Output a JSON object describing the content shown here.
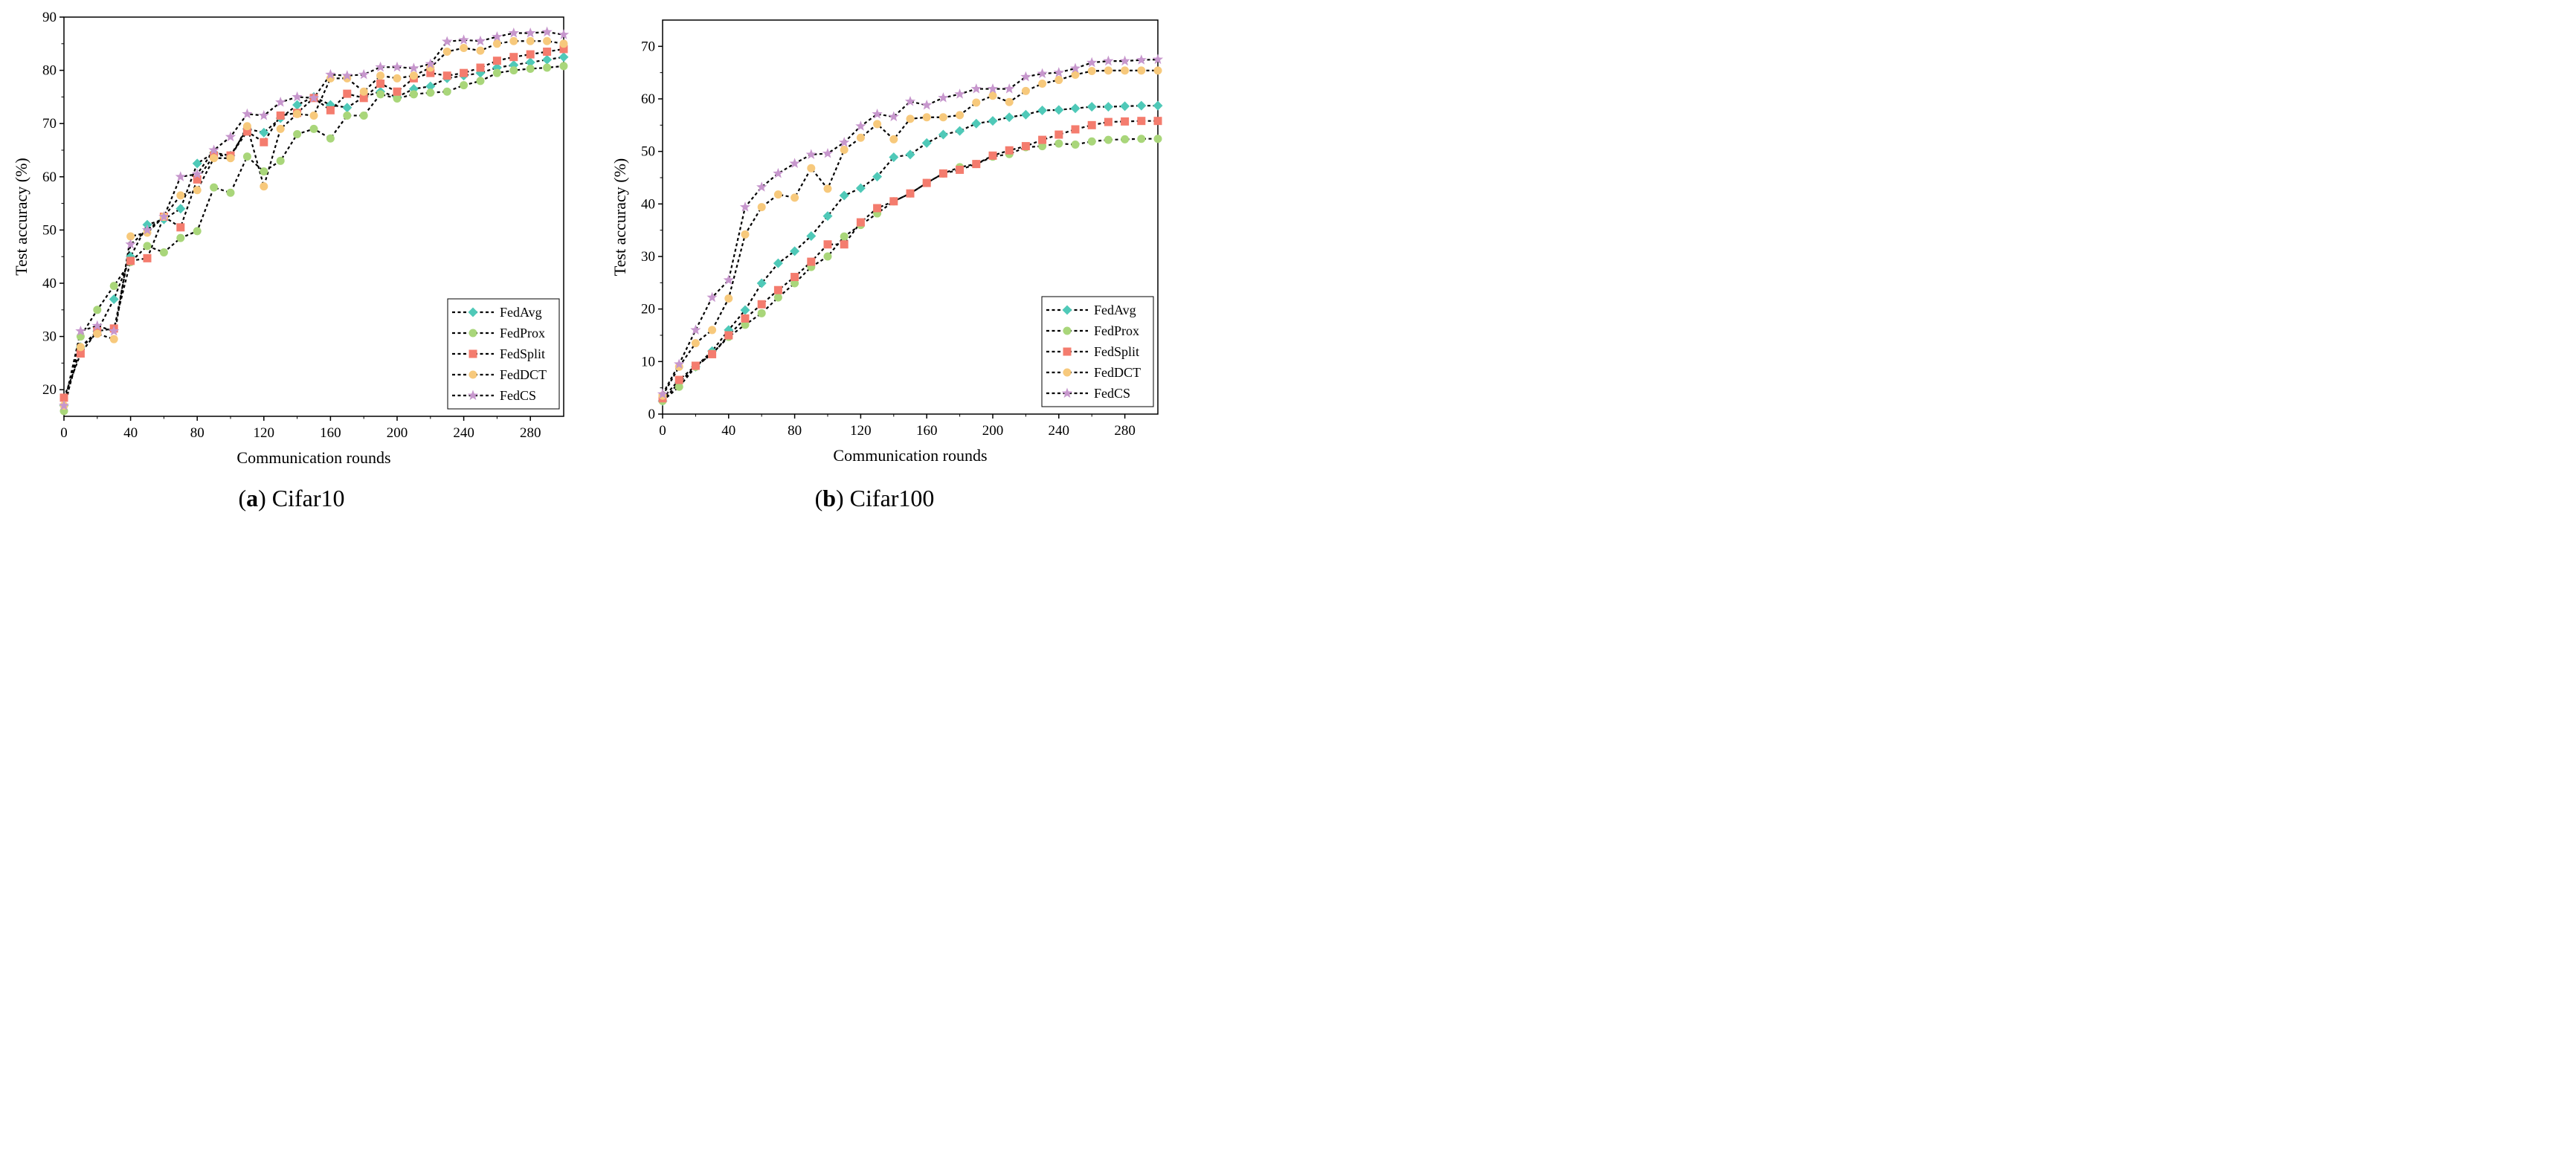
{
  "chart_data": [
    {
      "type": "line",
      "panel_label": "a",
      "caption": "Cifar10",
      "xlabel": "Communication rounds",
      "ylabel": "Test accuracy (%)",
      "xlim": [
        0,
        300
      ],
      "ylim": [
        15,
        90
      ],
      "xticks": [
        0,
        40,
        80,
        120,
        160,
        200,
        240,
        280
      ],
      "yticks": [
        20,
        30,
        40,
        50,
        60,
        70,
        80,
        90
      ],
      "legend_position": "bottom-right",
      "x": [
        0,
        10,
        20,
        30,
        40,
        50,
        60,
        70,
        80,
        90,
        100,
        110,
        120,
        130,
        140,
        150,
        160,
        170,
        180,
        190,
        200,
        210,
        220,
        230,
        240,
        250,
        260,
        270,
        280,
        290,
        300
      ],
      "series": [
        {
          "name": "FedAvg",
          "color": "#4fc9b8",
          "marker": "diamond",
          "values": [
            17,
            28,
            31,
            37,
            45,
            51,
            52,
            54,
            62.5,
            64.5,
            64,
            69,
            68.3,
            71,
            73.5,
            75,
            73.5,
            73,
            75,
            76,
            75,
            76.5,
            77,
            78.5,
            79,
            79.5,
            80.5,
            81,
            81.5,
            82,
            82.5
          ]
        },
        {
          "name": "FedProx",
          "color": "#a9d67a",
          "marker": "circle",
          "values": [
            16,
            30,
            35,
            39.5,
            44,
            47,
            45.8,
            48.5,
            49.8,
            58,
            57,
            63.8,
            61,
            63,
            68,
            69,
            67.2,
            71.5,
            71.5,
            75.5,
            74.7,
            75.5,
            75.8,
            76,
            77.2,
            78,
            79.5,
            80,
            80.3,
            80.5,
            80.8
          ]
        },
        {
          "name": "FedSplit",
          "color": "#f47c6e",
          "marker": "square",
          "values": [
            18.5,
            26.8,
            31,
            31.5,
            44.2,
            44.7,
            52.5,
            50.5,
            59.5,
            64,
            64,
            68.5,
            66.5,
            71.5,
            72,
            74.8,
            72.5,
            75.6,
            74.8,
            77.5,
            76,
            78.5,
            79.5,
            79,
            79.5,
            80.5,
            81.8,
            82.5,
            83,
            83.5,
            84
          ]
        },
        {
          "name": "FedDCT",
          "color": "#f7c97c",
          "marker": "circle",
          "values": [
            17,
            28,
            30.5,
            29.5,
            48.8,
            49.5,
            52.5,
            56.5,
            57.5,
            63.5,
            63.5,
            69.5,
            58.2,
            69,
            71.8,
            71.5,
            78.5,
            78.5,
            76,
            79,
            78.5,
            79,
            80.5,
            83.5,
            84.2,
            83.7,
            85,
            85.5,
            85.5,
            85.5,
            85
          ]
        },
        {
          "name": "FedCS",
          "color": "#c797cd",
          "marker": "star",
          "values": [
            17,
            31,
            32,
            31,
            47.3,
            50,
            52.5,
            60,
            60.5,
            65,
            67.5,
            71.8,
            71.5,
            74,
            75,
            74.8,
            79.2,
            79,
            79.2,
            80.6,
            80.6,
            80.4,
            81.2,
            85.4,
            85.7,
            85.5,
            86.3,
            87,
            87,
            87.2,
            86.7
          ]
        }
      ]
    },
    {
      "type": "line",
      "panel_label": "b",
      "caption": "Cifar100",
      "xlabel": "Communication rounds",
      "ylabel": "Test accuracy (%)",
      "xlim": [
        0,
        300
      ],
      "ylim": [
        0,
        75
      ],
      "xticks": [
        0,
        40,
        80,
        120,
        160,
        200,
        240,
        280
      ],
      "yticks": [
        0,
        10,
        20,
        30,
        40,
        50,
        60,
        70
      ],
      "legend_position": "bottom-right",
      "x": [
        0,
        10,
        20,
        30,
        40,
        50,
        60,
        70,
        80,
        90,
        100,
        110,
        120,
        130,
        140,
        150,
        160,
        170,
        180,
        190,
        200,
        210,
        220,
        230,
        240,
        250,
        260,
        270,
        280,
        290,
        300
      ],
      "series": [
        {
          "name": "FedAvg",
          "color": "#4fc9b8",
          "marker": "diamond",
          "values": [
            2.5,
            6,
            9,
            12,
            16,
            19.8,
            24.9,
            28.7,
            31,
            33.9,
            37.7,
            41.6,
            43,
            45.2,
            48.9,
            49.4,
            51.6,
            53.2,
            53.9,
            55.3,
            55.8,
            56.5,
            57,
            57.8,
            57.9,
            58.2,
            58.5,
            58.5,
            58.6,
            58.7,
            58.7
          ]
        },
        {
          "name": "FedProx",
          "color": "#a9d67a",
          "marker": "circle",
          "values": [
            2.5,
            5.2,
            9,
            11.5,
            14.7,
            17,
            19.2,
            22.2,
            24.9,
            28,
            30,
            33.8,
            36,
            38.2,
            40.5,
            42,
            44,
            45.8,
            47,
            47.6,
            49,
            49.5,
            50.8,
            51,
            51.5,
            51.3,
            51.9,
            52.2,
            52.3,
            52.4,
            52.4
          ]
        },
        {
          "name": "FedSplit",
          "color": "#f47c6e",
          "marker": "square",
          "values": [
            3,
            6.5,
            9.2,
            11.4,
            15,
            18.2,
            20.9,
            23.6,
            26.1,
            29,
            32.3,
            32.3,
            36.5,
            39.2,
            40.5,
            42,
            44,
            45.8,
            46.5,
            47.6,
            49.2,
            50.2,
            51,
            52.2,
            53.2,
            54.2,
            55,
            55.6,
            55.7,
            55.8,
            55.8
          ]
        },
        {
          "name": "FedDCT",
          "color": "#f7c97c",
          "marker": "circle",
          "values": [
            3.5,
            9,
            13.5,
            16,
            22,
            34.2,
            39.4,
            41.8,
            41.2,
            46.8,
            42.9,
            50.3,
            52.6,
            55.2,
            52.3,
            56.2,
            56.5,
            56.5,
            56.9,
            59.3,
            60.6,
            59.4,
            61.5,
            62.9,
            63.6,
            64.6,
            65.3,
            65.4,
            65.4,
            65.4,
            65.4
          ]
        },
        {
          "name": "FedCS",
          "color": "#c797cd",
          "marker": "star",
          "values": [
            3.8,
            9.5,
            16,
            22.2,
            25.5,
            39.4,
            43.2,
            45.8,
            47.7,
            49.4,
            49.6,
            51.7,
            54.8,
            57.1,
            56.6,
            59.5,
            58.8,
            60.2,
            60.9,
            61.9,
            61.9,
            61.9,
            64.2,
            64.8,
            65,
            65.8,
            66.9,
            67.2,
            67.2,
            67.4,
            67.5
          ]
        }
      ]
    }
  ]
}
